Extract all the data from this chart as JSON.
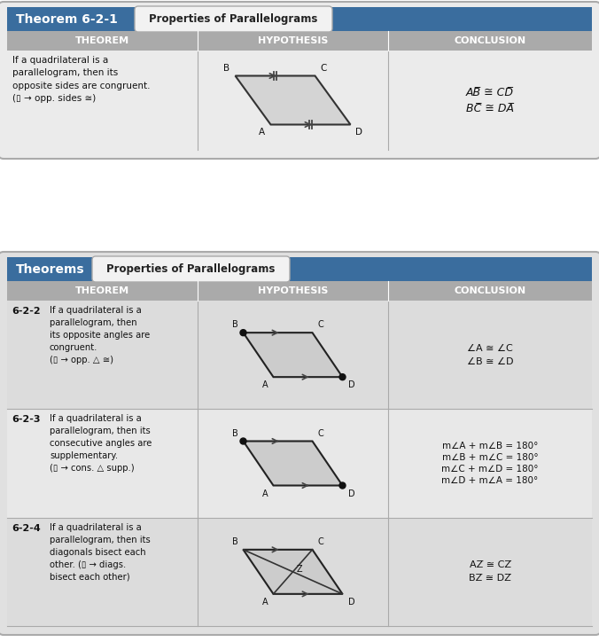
{
  "fig_w": 6.76,
  "fig_h": 7.24,
  "bg_color": "#ffffff",
  "table1": {
    "title_box_color": "#3a6d9e",
    "title_text": "Theorem 6-2-1",
    "title_subtitle": "Properties of Parallelograms",
    "header_bg": "#999999",
    "cell_bg": "#e4e4e4",
    "header_cols": [
      "THEOREM",
      "HYPOTHESIS",
      "CONCLUSION"
    ],
    "theorem_text": "If a quadrilateral is a\nparallelogram, then its\nopposite sides are congruent.\n(▯ → opp. sides ≅)",
    "conclusion_lines": [
      "AB̅ ≅ CD̅",
      "BC̅ ≅ DA̅"
    ]
  },
  "table2": {
    "title_box_color": "#3a6d9e",
    "title_text": "Theorems",
    "title_subtitle": "Properties of Parallelograms",
    "header_bg": "#999999",
    "cell_bg": "#d8d8d8",
    "header_cols": [
      "THEOREM",
      "HYPOTHESIS",
      "CONCLUSION"
    ],
    "rows": [
      {
        "num": "6-2-2",
        "theorem_text": "If a quadrilateral is a\nparallelogram, then\nits opposite angles are\ncongruent.\n(▯ → opp. △ ≅)",
        "conclusion_lines": [
          "∠A ≅ ∠C",
          "∠B ≅ ∠D"
        ]
      },
      {
        "num": "6-2-3",
        "theorem_text": "If a quadrilateral is a\nparallelogram, then its\nconsecutive angles are\nsupplementary.\n(▯ → cons. △ supp.)",
        "conclusion_lines": [
          "m∠A + m∠B = 180°",
          "m∠B + m∠C = 180°",
          "m∠C + m∠D = 180°",
          "m∠D + m∠A = 180°"
        ]
      },
      {
        "num": "6-2-4",
        "theorem_text": "If a quadrilateral is a\nparallelogram, then its\ndiagonals bisect each\nother. (▯ → diags.\nbisect each other)",
        "conclusion_lines": [
          "AZ̅ ≅ CZ̅",
          "BZ̅ ≅ DZ̅"
        ]
      }
    ]
  }
}
